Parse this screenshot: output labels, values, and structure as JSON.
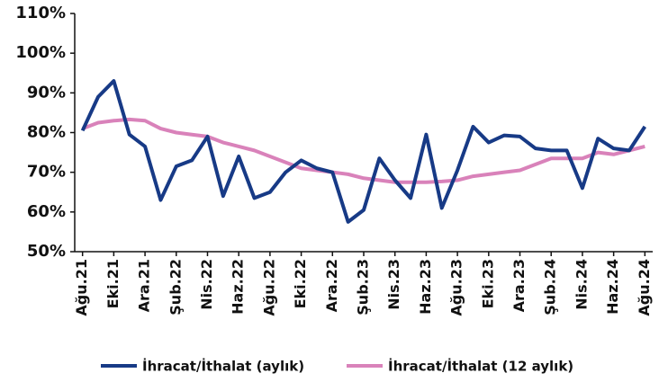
{
  "chart_data": {
    "type": "line",
    "categories": [
      "Ağu.21",
      null,
      "Eki.21",
      null,
      "Ara.21",
      null,
      "Şub.22",
      null,
      "Nis.22",
      null,
      "Haz.22",
      null,
      "Ağu.22",
      null,
      "Eki.22",
      null,
      "Ara.22",
      null,
      "Şub.23",
      null,
      "Nis.23",
      null,
      "Haz.23",
      null,
      "Ağu.23",
      null,
      "Eki.23",
      null,
      "Ara.23",
      null,
      "Şub.24",
      null,
      "Nis.24",
      null,
      "Haz.24",
      null,
      "Ağu.24"
    ],
    "series": [
      {
        "name": "İhracat/İthalat (aylık)",
        "color": "#173a86",
        "values": [
          80.5,
          89,
          93,
          79.5,
          76.5,
          63,
          71.5,
          73,
          79,
          64,
          74,
          63.5,
          65,
          70,
          73,
          71,
          70,
          57.5,
          60.5,
          73.5,
          68,
          63.5,
          79.5,
          61,
          70.5,
          81.5,
          77.5,
          79.3,
          79,
          76,
          75.5,
          75.5,
          66,
          78.5,
          76,
          75.5,
          81.5
        ]
      },
      {
        "name": "İhracat/İthalat (12 aylık)",
        "color": "#d982ba",
        "values": [
          81,
          82.5,
          83,
          83.3,
          83,
          81,
          80,
          79.5,
          79,
          77.5,
          76.5,
          75.5,
          74,
          72.5,
          71,
          70.5,
          70,
          69.5,
          68.5,
          68,
          67.5,
          67.5,
          67.5,
          67.7,
          68,
          69,
          69.5,
          70,
          70.5,
          72,
          73.5,
          73.5,
          73.5,
          75,
          74.5,
          75.5,
          76.5
        ]
      }
    ],
    "ylim": [
      50,
      110
    ],
    "yticks": [
      {
        "value": 50,
        "label": "50%"
      },
      {
        "value": 60,
        "label": "60%"
      },
      {
        "value": 70,
        "label": "70%"
      },
      {
        "value": 80,
        "label": "80%"
      },
      {
        "value": 90,
        "label": "90%"
      },
      {
        "value": 100,
        "label": "100%"
      },
      {
        "value": 110,
        "label": "110%"
      }
    ],
    "grid": false
  }
}
